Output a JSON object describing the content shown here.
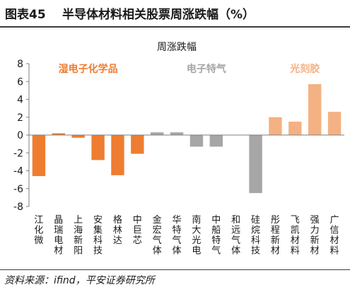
{
  "figure": {
    "number": "图表45",
    "title": "半导体材料相关股票周涨跌幅（%）",
    "source": "资料来源：ifind，平安证券研究所"
  },
  "chart_data": {
    "type": "bar",
    "title": "周涨跌幅",
    "xlabel": "",
    "ylabel": "",
    "ylim": [
      -8,
      8
    ],
    "yticks": [
      -8,
      -6,
      -4,
      -2,
      0,
      2,
      4,
      6,
      8
    ],
    "grid": false,
    "categories": [
      "江化微",
      "晶瑞电材",
      "上海新阳",
      "安集科技",
      "格林达",
      "中巨芯",
      "金宏气体",
      "华特气体",
      "南大光电",
      "中船特气",
      "和远气体",
      "硅烷科技",
      "彤程新材",
      "飞凯材料",
      "强力新材",
      "广信材料"
    ],
    "values": [
      -4.6,
      0.2,
      -0.3,
      -2.8,
      -4.5,
      -2.1,
      0.3,
      0.3,
      -1.3,
      -1.3,
      0.0,
      -6.5,
      2.0,
      1.5,
      5.7,
      2.6
    ],
    "groups": [
      {
        "name": "湿电子化学品",
        "color": "#ee7d31",
        "start": 0,
        "end": 5
      },
      {
        "name": "电子特气",
        "color": "#a6a6a6",
        "start": 6,
        "end": 11
      },
      {
        "name": "光刻胶",
        "color": "#f4b183",
        "start": 12,
        "end": 15
      }
    ]
  }
}
